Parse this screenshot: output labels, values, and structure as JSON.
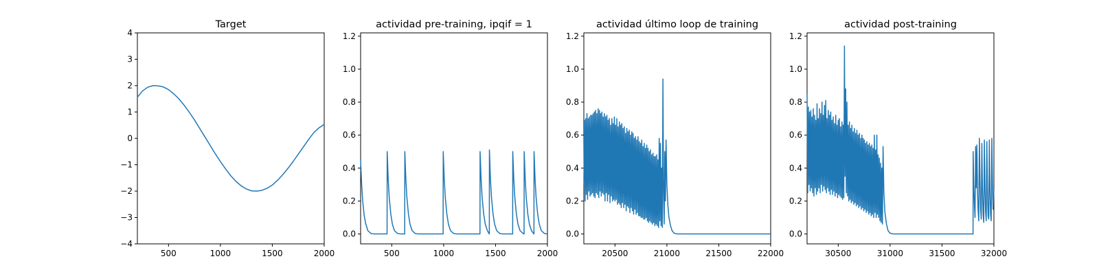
{
  "chart_data": [
    {
      "type": "line",
      "title": "Target",
      "xlim": [
        200,
        2000
      ],
      "ylim": [
        -4,
        4
      ],
      "xticks": [
        500,
        1000,
        1500,
        2000
      ],
      "yticks": [
        -4,
        -3,
        -2,
        -1,
        0,
        1,
        2,
        3,
        4
      ],
      "xtick_labels": [
        "500",
        "1000",
        "1500",
        "2000"
      ],
      "ytick_labels": [
        "−4",
        "−3",
        "−2",
        "−1",
        "0",
        "1",
        "2",
        "3",
        "4"
      ],
      "series": [
        {
          "color": "#1f77b4",
          "x": [
            200,
            250,
            300,
            350,
            400,
            450,
            500,
            550,
            600,
            650,
            700,
            750,
            800,
            850,
            900,
            950,
            1000,
            1050,
            1100,
            1150,
            1200,
            1250,
            1300,
            1350,
            1400,
            1450,
            1500,
            1550,
            1600,
            1650,
            1700,
            1750,
            1800,
            1850,
            1900,
            1950,
            2000
          ],
          "y": [
            1.56,
            1.8,
            1.94,
            2.0,
            1.99,
            1.95,
            1.85,
            1.69,
            1.5,
            1.26,
            0.99,
            0.7,
            0.38,
            0.06,
            -0.26,
            -0.58,
            -0.88,
            -1.16,
            -1.42,
            -1.63,
            -1.8,
            -1.92,
            -1.99,
            -2.0,
            -1.97,
            -1.89,
            -1.77,
            -1.59,
            -1.38,
            -1.14,
            -0.88,
            -0.6,
            -0.32,
            -0.04,
            0.22,
            0.4,
            0.53
          ]
        }
      ]
    },
    {
      "type": "line",
      "title": "actividad pre-training, ipqif = 1",
      "xlim": [
        200,
        2000
      ],
      "ylim": [
        -0.06,
        1.22
      ],
      "xticks": [
        500,
        1000,
        1500,
        2000
      ],
      "yticks": [
        0.0,
        0.2,
        0.4,
        0.6,
        0.8,
        1.0,
        1.2
      ],
      "xtick_labels": [
        "500",
        "1000",
        "1500",
        "2000"
      ],
      "ytick_labels": [
        "0.0",
        "0.2",
        "0.4",
        "0.6",
        "0.8",
        "1.0",
        "1.2"
      ],
      "series": [
        {
          "color": "#1f77b4",
          "x": [
            200,
            210,
            220,
            235,
            250,
            270,
            300,
            330,
            455,
            456,
            466,
            476,
            491,
            506,
            526,
            556,
            586,
            625,
            626,
            636,
            646,
            661,
            676,
            696,
            726,
            756,
            995,
            996,
            1006,
            1016,
            1031,
            1046,
            1066,
            1096,
            1126,
            1350,
            1351,
            1361,
            1371,
            1386,
            1401,
            1421,
            1440,
            1441,
            1451,
            1461,
            1476,
            1491,
            1511,
            1541,
            1571,
            1665,
            1666,
            1676,
            1686,
            1701,
            1716,
            1736,
            1766,
            1775,
            1776,
            1786,
            1796,
            1811,
            1826,
            1846,
            1870,
            1871,
            1881,
            1891,
            1906,
            1921,
            1941,
            1971,
            2000
          ],
          "y": [
            0.45,
            0.3,
            0.2,
            0.11,
            0.06,
            0.02,
            0.003,
            0.0,
            0.0,
            0.5,
            0.33,
            0.22,
            0.12,
            0.06,
            0.02,
            0.003,
            0.0,
            0.0,
            0.5,
            0.33,
            0.22,
            0.12,
            0.06,
            0.02,
            0.003,
            0.0,
            0.0,
            0.5,
            0.33,
            0.22,
            0.12,
            0.06,
            0.02,
            0.003,
            0.0,
            0.0,
            0.5,
            0.33,
            0.22,
            0.12,
            0.06,
            0.02,
            0.0,
            0.51,
            0.33,
            0.22,
            0.12,
            0.06,
            0.02,
            0.003,
            0.0,
            0.0,
            0.5,
            0.33,
            0.22,
            0.12,
            0.06,
            0.02,
            0.003,
            0.0,
            0.5,
            0.33,
            0.22,
            0.12,
            0.06,
            0.02,
            0.0,
            0.5,
            0.33,
            0.22,
            0.12,
            0.06,
            0.02,
            0.003,
            0.0
          ]
        }
      ]
    },
    {
      "type": "line",
      "title": "actividad último loop de training",
      "xlim": [
        20200,
        22000
      ],
      "ylim": [
        -0.06,
        1.22
      ],
      "xticks": [
        20500,
        21000,
        21500,
        22000
      ],
      "yticks": [
        0.0,
        0.2,
        0.4,
        0.6,
        0.8,
        1.0,
        1.2
      ],
      "xtick_labels": [
        "20500",
        "21000",
        "21500",
        "22000"
      ],
      "ytick_labels": [
        "0.0",
        "0.2",
        "0.4",
        "0.6",
        "0.8",
        "1.0",
        "1.2"
      ],
      "series": [
        {
          "color": "#1f77b4",
          "x": [
            20200,
            20206,
            20212,
            20218,
            20224,
            20230,
            20236,
            20242,
            20248,
            20254,
            20260,
            20266,
            20272,
            20278,
            20284,
            20290,
            20296,
            20302,
            20308,
            20314,
            20320,
            20326,
            20332,
            20338,
            20344,
            20350,
            20356,
            20362,
            20368,
            20374,
            20380,
            20386,
            20392,
            20398,
            20404,
            20410,
            20416,
            20422,
            20428,
            20434,
            20440,
            20446,
            20452,
            20458,
            20464,
            20470,
            20476,
            20482,
            20488,
            20494,
            20500,
            20506,
            20512,
            20518,
            20524,
            20530,
            20536,
            20542,
            20548,
            20554,
            20560,
            20566,
            20572,
            20578,
            20584,
            20590,
            20596,
            20602,
            20608,
            20614,
            20620,
            20626,
            20632,
            20638,
            20644,
            20650,
            20656,
            20662,
            20668,
            20674,
            20680,
            20686,
            20692,
            20698,
            20704,
            20710,
            20716,
            20722,
            20728,
            20734,
            20740,
            20746,
            20752,
            20758,
            20764,
            20770,
            20776,
            20782,
            20788,
            20794,
            20800,
            20806,
            20812,
            20818,
            20824,
            20830,
            20836,
            20842,
            20848,
            20854,
            20860,
            20866,
            20872,
            20878,
            20884,
            20890,
            20896,
            20902,
            20908,
            20914,
            20920,
            20926,
            20932,
            20938,
            20944,
            20950,
            20956,
            20962,
            20968,
            20974,
            20980,
            20986,
            20992,
            21000,
            21010,
            21020,
            21035,
            21050,
            21070,
            21100,
            21150,
            21300,
            22000
          ],
          "y": [
            0.3,
            0.69,
            0.2,
            0.7,
            0.24,
            0.73,
            0.21,
            0.7,
            0.26,
            0.71,
            0.23,
            0.72,
            0.24,
            0.72,
            0.25,
            0.73,
            0.23,
            0.74,
            0.22,
            0.75,
            0.25,
            0.73,
            0.24,
            0.76,
            0.22,
            0.75,
            0.26,
            0.73,
            0.23,
            0.74,
            0.25,
            0.71,
            0.24,
            0.73,
            0.2,
            0.71,
            0.25,
            0.72,
            0.2,
            0.69,
            0.24,
            0.7,
            0.19,
            0.66,
            0.23,
            0.7,
            0.2,
            0.67,
            0.21,
            0.71,
            0.2,
            0.66,
            0.21,
            0.7,
            0.18,
            0.65,
            0.19,
            0.68,
            0.18,
            0.66,
            0.16,
            0.67,
            0.19,
            0.64,
            0.16,
            0.65,
            0.18,
            0.61,
            0.14,
            0.64,
            0.17,
            0.62,
            0.16,
            0.63,
            0.13,
            0.6,
            0.16,
            0.62,
            0.14,
            0.61,
            0.12,
            0.58,
            0.15,
            0.59,
            0.12,
            0.57,
            0.13,
            0.59,
            0.11,
            0.56,
            0.11,
            0.55,
            0.1,
            0.57,
            0.1,
            0.53,
            0.09,
            0.55,
            0.09,
            0.52,
            0.1,
            0.54,
            0.08,
            0.52,
            0.07,
            0.5,
            0.08,
            0.51,
            0.07,
            0.48,
            0.06,
            0.49,
            0.07,
            0.47,
            0.05,
            0.47,
            0.06,
            0.48,
            0.05,
            0.45,
            0.04,
            0.58,
            0.08,
            0.55,
            0.05,
            0.4,
            0.04,
            0.94,
            0.25,
            0.06,
            0.5,
            0.2,
            0.57,
            0.3,
            0.17,
            0.1,
            0.05,
            0.02,
            0.005,
            0.0,
            0.0,
            0.0,
            0.0
          ]
        }
      ]
    },
    {
      "type": "line",
      "title": "actividad post-training",
      "xlim": [
        30200,
        32000
      ],
      "ylim": [
        -0.06,
        1.22
      ],
      "xticks": [
        30500,
        31000,
        31500,
        32000
      ],
      "yticks": [
        0.0,
        0.2,
        0.4,
        0.6,
        0.8,
        1.0,
        1.2
      ],
      "xtick_labels": [
        "30500",
        "31000",
        "31500",
        "32000"
      ],
      "ytick_labels": [
        "0.0",
        "0.2",
        "0.4",
        "0.6",
        "0.8",
        "1.0",
        "1.2"
      ],
      "series": [
        {
          "color": "#1f77b4",
          "x": [
            30200,
            30206,
            30212,
            30218,
            30224,
            30230,
            30236,
            30242,
            30248,
            30254,
            30260,
            30266,
            30272,
            30278,
            30284,
            30290,
            30296,
            30302,
            30308,
            30314,
            30320,
            30326,
            30332,
            30338,
            30344,
            30350,
            30356,
            30362,
            30368,
            30374,
            30380,
            30386,
            30392,
            30398,
            30404,
            30410,
            30416,
            30422,
            30428,
            30434,
            30440,
            30446,
            30452,
            30458,
            30464,
            30470,
            30476,
            30482,
            30488,
            30494,
            30500,
            30506,
            30512,
            30518,
            30524,
            30530,
            30536,
            30542,
            30548,
            30554,
            30560,
            30566,
            30572,
            30578,
            30584,
            30590,
            30596,
            30602,
            30608,
            30614,
            30620,
            30626,
            30632,
            30638,
            30644,
            30650,
            30656,
            30662,
            30668,
            30674,
            30680,
            30686,
            30692,
            30698,
            30704,
            30710,
            30716,
            30722,
            30728,
            30734,
            30740,
            30746,
            30752,
            30758,
            30764,
            30770,
            30776,
            30782,
            30788,
            30794,
            30800,
            30806,
            30812,
            30818,
            30824,
            30830,
            30836,
            30842,
            30848,
            30854,
            30860,
            30866,
            30872,
            30878,
            30884,
            30890,
            30896,
            30902,
            30908,
            30914,
            30920,
            30926,
            30932,
            30940,
            30950,
            30965,
            30980,
            31000,
            31030,
            31100,
            31300,
            31799,
            31800,
            31806,
            31812,
            31818,
            31824,
            31830,
            31836,
            31842,
            31848,
            31854,
            31860,
            31866,
            31872,
            31878,
            31884,
            31890,
            31896,
            31902,
            31908,
            31914,
            31920,
            31926,
            31932,
            31938,
            31944,
            31950,
            31956,
            31962,
            31968,
            31974,
            31980,
            31986,
            31992,
            32000
          ],
          "y": [
            0.85,
            0.25,
            0.77,
            0.3,
            0.74,
            0.26,
            0.75,
            0.28,
            0.71,
            0.25,
            0.76,
            0.23,
            0.72,
            0.28,
            0.69,
            0.24,
            0.79,
            0.26,
            0.7,
            0.28,
            0.76,
            0.25,
            0.73,
            0.3,
            0.8,
            0.26,
            0.72,
            0.29,
            0.78,
            0.27,
            0.81,
            0.25,
            0.7,
            0.28,
            0.75,
            0.26,
            0.72,
            0.24,
            0.74,
            0.27,
            0.69,
            0.24,
            0.71,
            0.26,
            0.67,
            0.23,
            0.72,
            0.25,
            0.66,
            0.22,
            0.69,
            0.24,
            0.7,
            0.23,
            0.65,
            0.22,
            0.68,
            0.21,
            0.66,
            0.22,
            1.14,
            0.35,
            0.88,
            0.25,
            0.8,
            0.23,
            0.66,
            0.2,
            0.68,
            0.21,
            0.64,
            0.19,
            0.66,
            0.2,
            0.62,
            0.18,
            0.64,
            0.19,
            0.61,
            0.17,
            0.63,
            0.18,
            0.6,
            0.16,
            0.61,
            0.17,
            0.58,
            0.15,
            0.6,
            0.16,
            0.58,
            0.14,
            0.57,
            0.15,
            0.55,
            0.13,
            0.56,
            0.14,
            0.54,
            0.12,
            0.55,
            0.13,
            0.53,
            0.11,
            0.54,
            0.12,
            0.52,
            0.1,
            0.6,
            0.13,
            0.51,
            0.1,
            0.6,
            0.12,
            0.48,
            0.1,
            0.46,
            0.08,
            0.43,
            0.07,
            0.4,
            0.06,
            0.53,
            0.25,
            0.13,
            0.06,
            0.02,
            0.005,
            0.0,
            0.0,
            0.0,
            0.0,
            0.5,
            0.3,
            0.18,
            0.1,
            0.53,
            0.28,
            0.54,
            0.26,
            0.14,
            0.08,
            0.58,
            0.32,
            0.15,
            0.09,
            0.55,
            0.26,
            0.12,
            0.07,
            0.57,
            0.28,
            0.13,
            0.08,
            0.56,
            0.25,
            0.11,
            0.09,
            0.57,
            0.26,
            0.12,
            0.08,
            0.58,
            0.3,
            0.15,
            0.27
          ]
        }
      ]
    }
  ]
}
